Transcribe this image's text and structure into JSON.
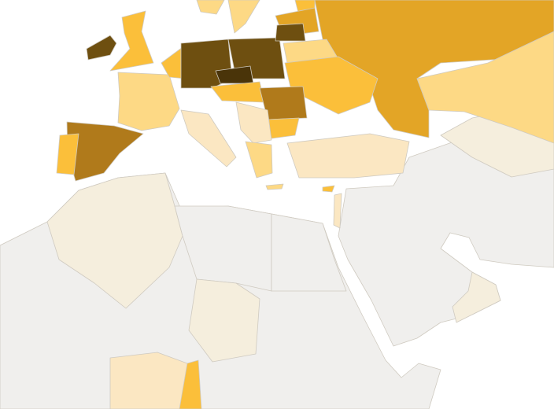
{
  "map": {
    "colors": [
      "#f0efed",
      "#f5eedd",
      "#fbe7c2",
      "#fdd985",
      "#fbbf3a",
      "#e3a526",
      "#b07a1b",
      "#6e4f10",
      "#4a3409"
    ]
  }
}
